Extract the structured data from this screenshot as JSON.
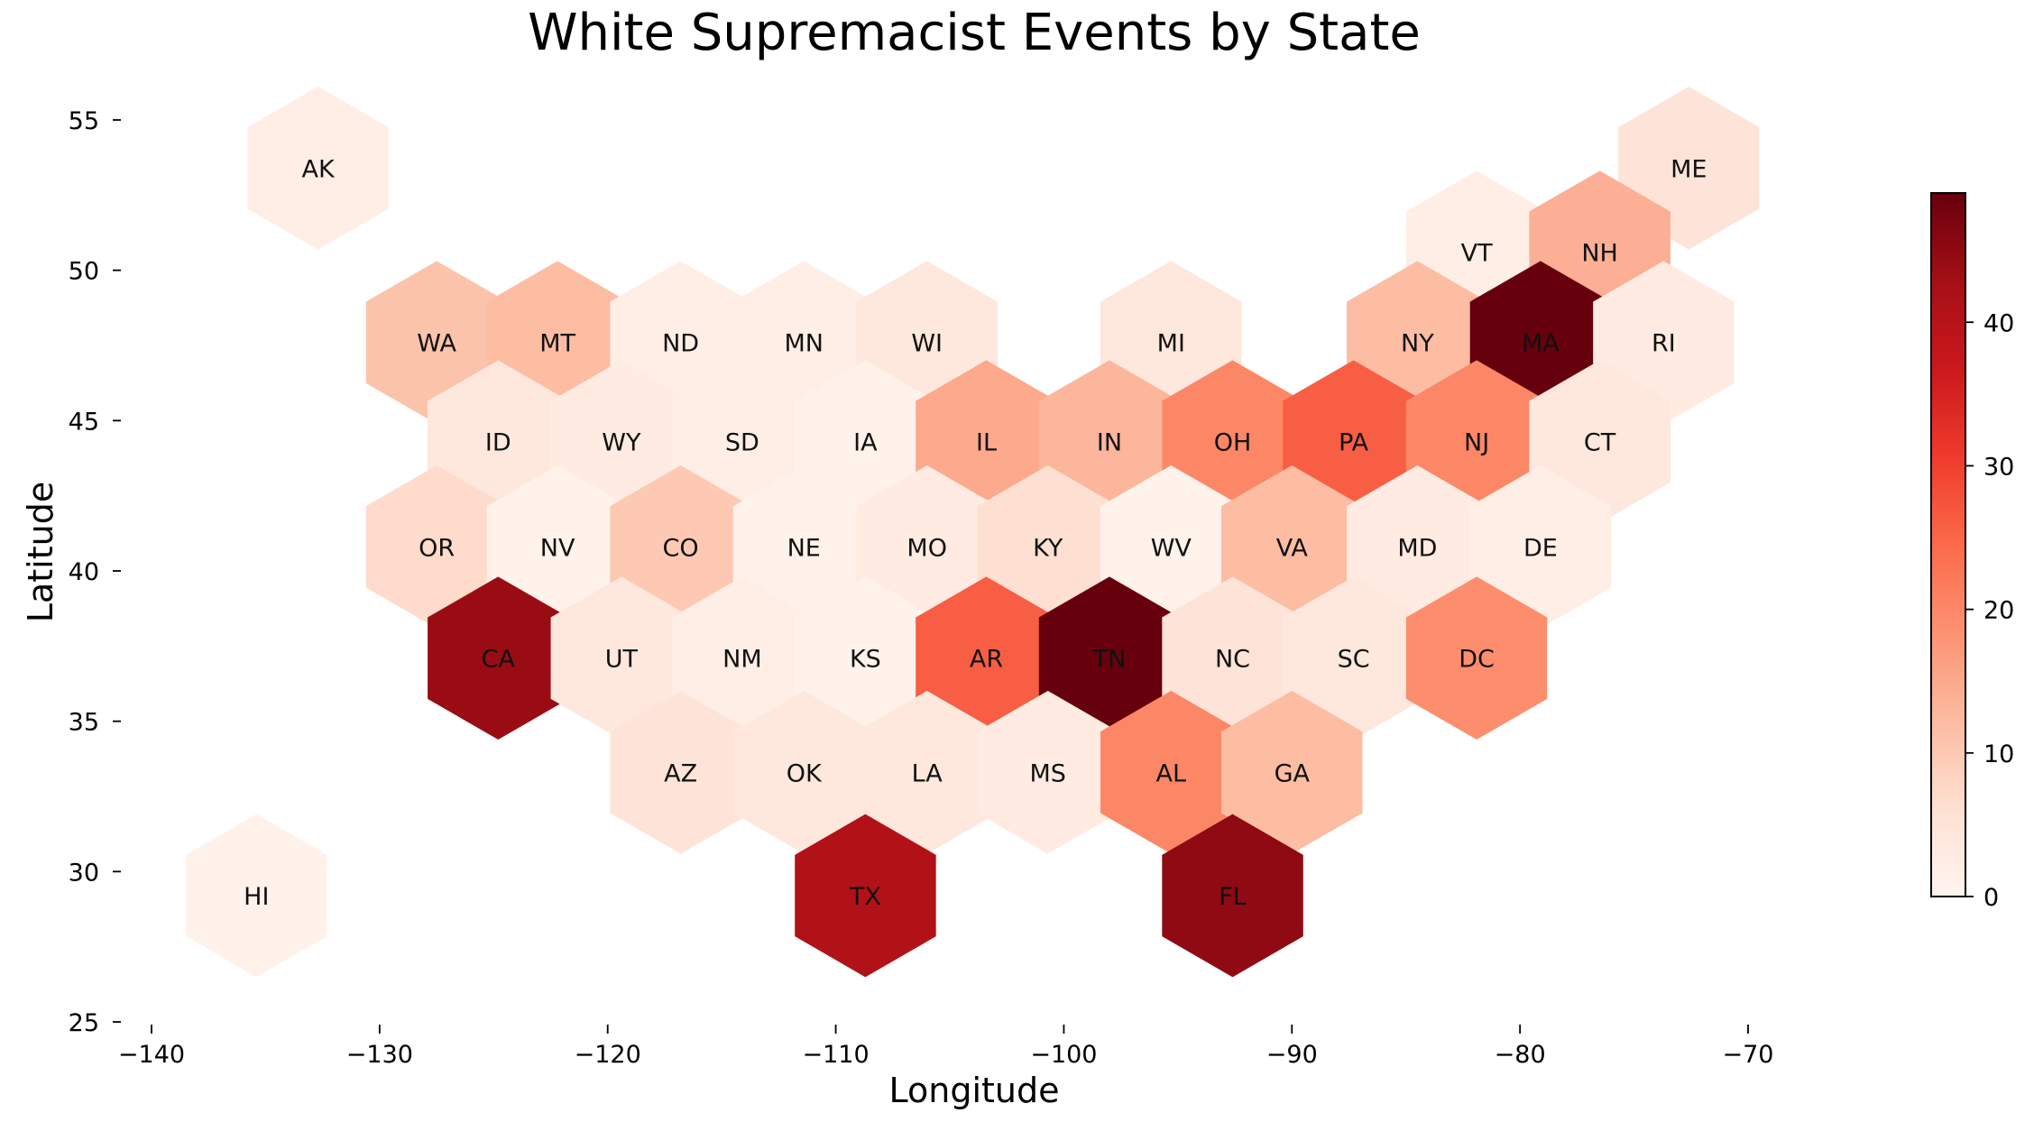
{
  "chart_data": {
    "type": "heatmap",
    "subtype": "hexbin-tile-map",
    "title": "White Supremacist Events by State",
    "xlabel": "Longitude",
    "ylabel": "Latitude",
    "xlim": [
      -141.5,
      -69.5
    ],
    "ylim": [
      25,
      56
    ],
    "xticks": [
      -140,
      -130,
      -120,
      -110,
      -100,
      -90,
      -80,
      -70
    ],
    "yticks": [
      25,
      30,
      35,
      40,
      45,
      50,
      55
    ],
    "xtick_labels": [
      "−140",
      "−130",
      "−120",
      "−110",
      "−100",
      "−90",
      "−80",
      "−70"
    ],
    "ytick_labels": [
      "25",
      "30",
      "35",
      "40",
      "45",
      "50",
      "55"
    ],
    "colormap": "Reds",
    "color_range": [
      0,
      49
    ],
    "colorbar_ticks": [
      0,
      10,
      20,
      30,
      40
    ],
    "colorbar_tick_labels": [
      "0",
      "10",
      "20",
      "30",
      "40"
    ],
    "grid": false,
    "legend": "colorbar-right",
    "states": [
      {
        "state": "AK",
        "lon": -132.7,
        "lat": 53.4,
        "value": 2
      },
      {
        "state": "ME",
        "lon": -72.6,
        "lat": 53.4,
        "value": 5
      },
      {
        "state": "VT",
        "lon": -81.9,
        "lat": 50.6,
        "value": 2
      },
      {
        "state": "NH",
        "lon": -76.5,
        "lat": 50.6,
        "value": 14
      },
      {
        "state": "WA",
        "lon": -127.5,
        "lat": 47.6,
        "value": 11
      },
      {
        "state": "MT",
        "lon": -122.2,
        "lat": 47.6,
        "value": 12
      },
      {
        "state": "ND",
        "lon": -116.8,
        "lat": 47.6,
        "value": 2
      },
      {
        "state": "MN",
        "lon": -111.4,
        "lat": 47.6,
        "value": 2
      },
      {
        "state": "WI",
        "lon": -106.0,
        "lat": 47.6,
        "value": 4
      },
      {
        "state": "MI",
        "lon": -95.3,
        "lat": 47.6,
        "value": 4
      },
      {
        "state": "NY",
        "lon": -84.5,
        "lat": 47.6,
        "value": 12
      },
      {
        "state": "MA",
        "lon": -79.1,
        "lat": 47.6,
        "value": 49
      },
      {
        "state": "RI",
        "lon": -73.7,
        "lat": 47.6,
        "value": 3
      },
      {
        "state": "ID",
        "lon": -124.8,
        "lat": 44.3,
        "value": 4
      },
      {
        "state": "WY",
        "lon": -119.4,
        "lat": 44.3,
        "value": 3
      },
      {
        "state": "SD",
        "lon": -114.1,
        "lat": 44.3,
        "value": 2
      },
      {
        "state": "IA",
        "lon": -108.7,
        "lat": 44.3,
        "value": 1
      },
      {
        "state": "IL",
        "lon": -103.4,
        "lat": 44.3,
        "value": 15
      },
      {
        "state": "IN",
        "lon": -98.0,
        "lat": 44.3,
        "value": 13
      },
      {
        "state": "OH",
        "lon": -92.6,
        "lat": 44.3,
        "value": 20
      },
      {
        "state": "PA",
        "lon": -87.3,
        "lat": 44.3,
        "value": 26
      },
      {
        "state": "NJ",
        "lon": -81.9,
        "lat": 44.3,
        "value": 20
      },
      {
        "state": "CT",
        "lon": -76.5,
        "lat": 44.3,
        "value": 4
      },
      {
        "state": "OR",
        "lon": -127.5,
        "lat": 40.8,
        "value": 7
      },
      {
        "state": "NV",
        "lon": -122.2,
        "lat": 40.8,
        "value": 1
      },
      {
        "state": "CO",
        "lon": -116.8,
        "lat": 40.8,
        "value": 10
      },
      {
        "state": "NE",
        "lon": -111.4,
        "lat": 40.8,
        "value": 1
      },
      {
        "state": "MO",
        "lon": -106.0,
        "lat": 40.8,
        "value": 3
      },
      {
        "state": "KY",
        "lon": -100.7,
        "lat": 40.8,
        "value": 6
      },
      {
        "state": "WV",
        "lon": -95.3,
        "lat": 40.8,
        "value": 1
      },
      {
        "state": "VA",
        "lon": -90.0,
        "lat": 40.8,
        "value": 12
      },
      {
        "state": "MD",
        "lon": -84.5,
        "lat": 40.8,
        "value": 3
      },
      {
        "state": "DE",
        "lon": -79.1,
        "lat": 40.8,
        "value": 2
      },
      {
        "state": "CA",
        "lon": -124.8,
        "lat": 37.1,
        "value": 44
      },
      {
        "state": "UT",
        "lon": -119.4,
        "lat": 37.1,
        "value": 4
      },
      {
        "state": "NM",
        "lon": -114.1,
        "lat": 37.1,
        "value": 2
      },
      {
        "state": "KS",
        "lon": -108.7,
        "lat": 37.1,
        "value": 1
      },
      {
        "state": "AR",
        "lon": -103.4,
        "lat": 37.1,
        "value": 26
      },
      {
        "state": "TN",
        "lon": -98.0,
        "lat": 37.1,
        "value": 49
      },
      {
        "state": "NC",
        "lon": -92.6,
        "lat": 37.1,
        "value": 5
      },
      {
        "state": "SC",
        "lon": -87.3,
        "lat": 37.1,
        "value": 4
      },
      {
        "state": "DC",
        "lon": -81.9,
        "lat": 37.1,
        "value": 19
      },
      {
        "state": "AZ",
        "lon": -116.8,
        "lat": 33.3,
        "value": 5
      },
      {
        "state": "OK",
        "lon": -111.4,
        "lat": 33.3,
        "value": 4
      },
      {
        "state": "LA",
        "lon": -106.0,
        "lat": 33.3,
        "value": 4
      },
      {
        "state": "MS",
        "lon": -100.7,
        "lat": 33.3,
        "value": 3
      },
      {
        "state": "AL",
        "lon": -95.3,
        "lat": 33.3,
        "value": 20
      },
      {
        "state": "GA",
        "lon": -90.0,
        "lat": 33.3,
        "value": 12
      },
      {
        "state": "HI",
        "lon": -135.4,
        "lat": 29.2,
        "value": 1
      },
      {
        "state": "TX",
        "lon": -108.7,
        "lat": 29.2,
        "value": 41
      },
      {
        "state": "FL",
        "lon": -92.6,
        "lat": 29.2,
        "value": 45
      }
    ]
  }
}
